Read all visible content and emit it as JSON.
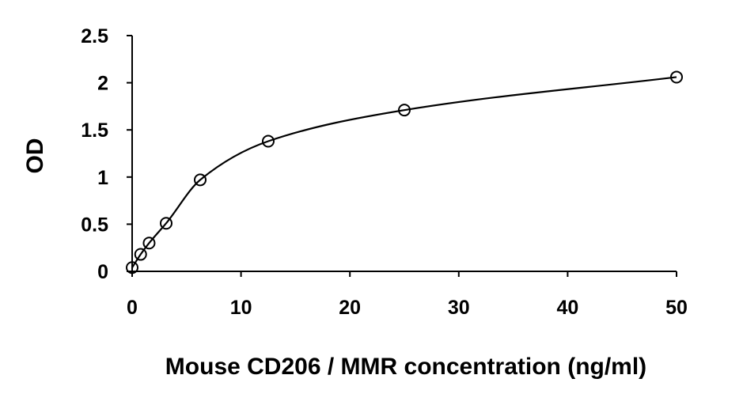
{
  "chart_data": {
    "type": "scatter",
    "title": "",
    "xlabel": "Mouse CD206 / MMR concentration (ng/ml)",
    "ylabel": "OD",
    "xlim": [
      0,
      50
    ],
    "ylim": [
      0,
      2.5
    ],
    "x_ticks": [
      0,
      10,
      20,
      30,
      40,
      50
    ],
    "y_ticks": [
      0,
      0.5,
      1,
      1.5,
      2,
      2.5
    ],
    "x_tick_labels": [
      "0",
      "10",
      "20",
      "30",
      "40",
      "50"
    ],
    "y_tick_labels": [
      "0",
      "0.5",
      "1",
      "1.5",
      "2",
      "2.5"
    ],
    "grid": false,
    "legend": "none",
    "series": [
      {
        "marker": "open-circle",
        "color": "#000000",
        "x": [
          0,
          0.78,
          1.56,
          3.125,
          6.25,
          12.5,
          25,
          50
        ],
        "y": [
          0.04,
          0.18,
          0.3,
          0.51,
          0.97,
          1.38,
          1.71,
          2.06
        ]
      }
    ],
    "fit_curve": {
      "type": "smooth",
      "color": "#000000"
    }
  }
}
